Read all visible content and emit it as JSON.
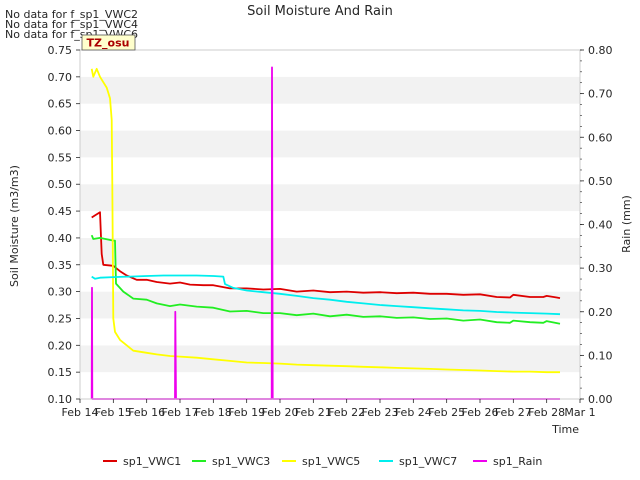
{
  "chart_data": {
    "type": "line",
    "title": "Soil Moisture And Rain",
    "xlabel": "Time",
    "ylabel_left": "Soil Moisture (m3/m3)",
    "ylabel_right": "Rain (mm)",
    "no_data_notes": [
      "No data for f_sp1_VWC2",
      "No data for f_sp1_VWC4",
      "No data for f_sp1_VWC6"
    ],
    "site_label": "TZ_osu",
    "x_range_days": [
      14,
      29
    ],
    "x_ticks": [
      {
        "day": 14,
        "label": "Feb 14"
      },
      {
        "day": 15,
        "label": "Feb 15"
      },
      {
        "day": 16,
        "label": "Feb 16"
      },
      {
        "day": 17,
        "label": "Feb 17"
      },
      {
        "day": 18,
        "label": "Feb 18"
      },
      {
        "day": 19,
        "label": "Feb 19"
      },
      {
        "day": 20,
        "label": "Feb 20"
      },
      {
        "day": 21,
        "label": "Feb 21"
      },
      {
        "day": 22,
        "label": "Feb 22"
      },
      {
        "day": 23,
        "label": "Feb 23"
      },
      {
        "day": 24,
        "label": "Feb 24"
      },
      {
        "day": 25,
        "label": "Feb 25"
      },
      {
        "day": 26,
        "label": "Feb 26"
      },
      {
        "day": 27,
        "label": "Feb 27"
      },
      {
        "day": 28,
        "label": "Feb 28"
      },
      {
        "day": 29,
        "label": "Mar 1"
      }
    ],
    "ylim_left": [
      0.1,
      0.75
    ],
    "y_ticks_left": [
      "0.10",
      "0.15",
      "0.20",
      "0.25",
      "0.30",
      "0.35",
      "0.40",
      "0.45",
      "0.50",
      "0.55",
      "0.60",
      "0.65",
      "0.70",
      "0.75"
    ],
    "ylim_right": [
      0.0,
      0.8
    ],
    "y_ticks_right": [
      "0.00",
      "0.10",
      "0.20",
      "0.30",
      "0.40",
      "0.50",
      "0.60",
      "0.70",
      "0.80"
    ],
    "legend_placement": "bottom",
    "series": [
      {
        "name": "sp1_VWC1",
        "color": "#dd0000",
        "axis": "left",
        "points": [
          [
            14.35,
            0.438
          ],
          [
            14.45,
            0.442
          ],
          [
            14.6,
            0.448
          ],
          [
            14.65,
            0.37
          ],
          [
            14.7,
            0.35
          ],
          [
            15.0,
            0.348
          ],
          [
            15.2,
            0.338
          ],
          [
            15.4,
            0.33
          ],
          [
            15.7,
            0.322
          ],
          [
            16.0,
            0.322
          ],
          [
            16.3,
            0.318
          ],
          [
            16.7,
            0.315
          ],
          [
            17.0,
            0.317
          ],
          [
            17.3,
            0.313
          ],
          [
            17.7,
            0.312
          ],
          [
            18.0,
            0.312
          ],
          [
            18.5,
            0.306
          ],
          [
            19.0,
            0.306
          ],
          [
            19.5,
            0.304
          ],
          [
            20.0,
            0.305
          ],
          [
            20.5,
            0.3
          ],
          [
            21.0,
            0.302
          ],
          [
            21.5,
            0.299
          ],
          [
            22.0,
            0.3
          ],
          [
            22.5,
            0.298
          ],
          [
            23.0,
            0.299
          ],
          [
            23.5,
            0.297
          ],
          [
            24.0,
            0.298
          ],
          [
            24.5,
            0.296
          ],
          [
            25.0,
            0.296
          ],
          [
            25.5,
            0.294
          ],
          [
            26.0,
            0.295
          ],
          [
            26.5,
            0.29
          ],
          [
            26.9,
            0.289
          ],
          [
            27.0,
            0.294
          ],
          [
            27.5,
            0.29
          ],
          [
            27.9,
            0.29
          ],
          [
            28.0,
            0.292
          ],
          [
            28.3,
            0.289
          ],
          [
            28.4,
            0.288
          ]
        ]
      },
      {
        "name": "sp1_VWC3",
        "color": "#22ee22",
        "axis": "left",
        "points": [
          [
            14.35,
            0.405
          ],
          [
            14.4,
            0.398
          ],
          [
            14.6,
            0.4
          ],
          [
            15.0,
            0.395
          ],
          [
            15.05,
            0.395
          ],
          [
            15.08,
            0.315
          ],
          [
            15.3,
            0.3
          ],
          [
            15.6,
            0.287
          ],
          [
            16.0,
            0.285
          ],
          [
            16.3,
            0.278
          ],
          [
            16.7,
            0.273
          ],
          [
            17.0,
            0.276
          ],
          [
            17.5,
            0.272
          ],
          [
            18.0,
            0.27
          ],
          [
            18.5,
            0.263
          ],
          [
            19.0,
            0.264
          ],
          [
            19.5,
            0.26
          ],
          [
            20.0,
            0.26
          ],
          [
            20.5,
            0.256
          ],
          [
            21.0,
            0.259
          ],
          [
            21.5,
            0.254
          ],
          [
            22.0,
            0.257
          ],
          [
            22.5,
            0.253
          ],
          [
            23.0,
            0.254
          ],
          [
            23.5,
            0.251
          ],
          [
            24.0,
            0.252
          ],
          [
            24.5,
            0.249
          ],
          [
            25.0,
            0.25
          ],
          [
            25.5,
            0.246
          ],
          [
            26.0,
            0.248
          ],
          [
            26.5,
            0.243
          ],
          [
            26.9,
            0.242
          ],
          [
            27.0,
            0.246
          ],
          [
            27.5,
            0.243
          ],
          [
            27.9,
            0.242
          ],
          [
            28.0,
            0.245
          ],
          [
            28.4,
            0.24
          ]
        ]
      },
      {
        "name": "sp1_VWC5",
        "color": "#ffff00",
        "axis": "left",
        "points": [
          [
            14.35,
            0.715
          ],
          [
            14.4,
            0.7
          ],
          [
            14.5,
            0.715
          ],
          [
            14.6,
            0.7
          ],
          [
            14.7,
            0.69
          ],
          [
            14.8,
            0.68
          ],
          [
            14.9,
            0.66
          ],
          [
            14.95,
            0.62
          ],
          [
            14.97,
            0.5
          ],
          [
            15.0,
            0.25
          ],
          [
            15.05,
            0.225
          ],
          [
            15.2,
            0.21
          ],
          [
            15.4,
            0.2
          ],
          [
            15.6,
            0.19
          ],
          [
            16.0,
            0.186
          ],
          [
            16.3,
            0.183
          ],
          [
            16.7,
            0.18
          ],
          [
            17.0,
            0.179
          ],
          [
            17.5,
            0.177
          ],
          [
            18.0,
            0.174
          ],
          [
            18.5,
            0.171
          ],
          [
            19.0,
            0.168
          ],
          [
            19.5,
            0.167
          ],
          [
            20.0,
            0.166
          ],
          [
            20.5,
            0.164
          ],
          [
            21.0,
            0.163
          ],
          [
            21.5,
            0.162
          ],
          [
            22.0,
            0.161
          ],
          [
            22.5,
            0.16
          ],
          [
            23.0,
            0.159
          ],
          [
            23.5,
            0.158
          ],
          [
            24.0,
            0.157
          ],
          [
            24.5,
            0.156
          ],
          [
            25.0,
            0.155
          ],
          [
            25.5,
            0.154
          ],
          [
            26.0,
            0.153
          ],
          [
            26.5,
            0.152
          ],
          [
            27.0,
            0.151
          ],
          [
            27.5,
            0.151
          ],
          [
            28.0,
            0.15
          ],
          [
            28.4,
            0.15
          ]
        ]
      },
      {
        "name": "sp1_VWC7",
        "color": "#00eeee",
        "axis": "left",
        "points": [
          [
            14.35,
            0.328
          ],
          [
            14.45,
            0.324
          ],
          [
            14.6,
            0.326
          ],
          [
            15.0,
            0.327
          ],
          [
            15.5,
            0.328
          ],
          [
            16.0,
            0.329
          ],
          [
            16.5,
            0.33
          ],
          [
            17.0,
            0.33
          ],
          [
            17.5,
            0.33
          ],
          [
            18.0,
            0.329
          ],
          [
            18.3,
            0.328
          ],
          [
            18.35,
            0.314
          ],
          [
            18.6,
            0.307
          ],
          [
            19.0,
            0.302
          ],
          [
            19.5,
            0.299
          ],
          [
            20.0,
            0.296
          ],
          [
            20.5,
            0.292
          ],
          [
            21.0,
            0.288
          ],
          [
            21.5,
            0.285
          ],
          [
            22.0,
            0.281
          ],
          [
            22.5,
            0.278
          ],
          [
            23.0,
            0.275
          ],
          [
            23.5,
            0.273
          ],
          [
            24.0,
            0.271
          ],
          [
            24.5,
            0.269
          ],
          [
            25.0,
            0.267
          ],
          [
            25.5,
            0.265
          ],
          [
            26.0,
            0.264
          ],
          [
            26.5,
            0.262
          ],
          [
            27.0,
            0.261
          ],
          [
            27.5,
            0.26
          ],
          [
            28.0,
            0.259
          ],
          [
            28.4,
            0.258
          ]
        ]
      },
      {
        "name": "sp1_Rain",
        "color": "#ee00ee",
        "axis": "right",
        "points": [
          [
            14.35,
            0.0
          ],
          [
            14.36,
            0.255
          ],
          [
            14.37,
            0.0
          ],
          [
            16.85,
            0.0
          ],
          [
            16.86,
            0.2
          ],
          [
            16.88,
            0.0
          ],
          [
            19.75,
            0.0
          ],
          [
            19.76,
            0.76
          ],
          [
            19.78,
            0.0
          ],
          [
            28.4,
            0.0
          ]
        ]
      }
    ]
  }
}
